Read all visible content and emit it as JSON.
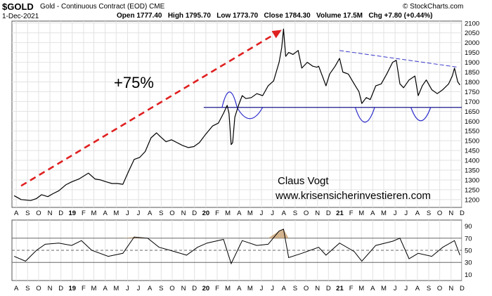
{
  "header": {
    "symbol": "$GOLD",
    "description": "Gold - Continuous Contract (EOD)",
    "exchange": "CME",
    "date": "1-Dec-2021",
    "ohlc_line": "Open 1777.40   High 1795.70   Low 1773.70   Close 1784.30   Volume 17.5M   Chg +7.80 (+0.44%)",
    "watermark": "© StockCharts.com"
  },
  "annotations": {
    "gain_label": "+75%",
    "author": "Claus Vogt",
    "website": "www.krisensicherinvestieren.com"
  },
  "colors": {
    "price_line": "#000000",
    "arrow": "#e02020",
    "support_line": "#1a1a8c",
    "resistance_line": "#3a3acc",
    "ihs_curves": "#2a2acc",
    "grid": "#e2e2e2",
    "rsi_fill": "#c8a070"
  },
  "chart_data": [
    {
      "type": "line",
      "title": "Gold - Continuous Contract (EOD)",
      "x_axis_labels": [
        "A",
        "S",
        "O",
        "N",
        "D",
        "19",
        "F",
        "M",
        "A",
        "M",
        "J",
        "J",
        "A",
        "S",
        "O",
        "N",
        "D",
        "20",
        "F",
        "M",
        "A",
        "M",
        "J",
        "J",
        "A",
        "S",
        "O",
        "N",
        "D",
        "21",
        "F",
        "M",
        "A",
        "M",
        "J",
        "J",
        "A",
        "S",
        "O",
        "N",
        "D"
      ],
      "year_labels": [
        "19",
        "20",
        "21"
      ],
      "y_ticks": [
        1200,
        1250,
        1300,
        1350,
        1400,
        1450,
        1500,
        1550,
        1600,
        1650,
        1700,
        1750,
        1800,
        1850,
        1900,
        1950,
        2000,
        2050,
        2100
      ],
      "ylim": [
        1160,
        2110
      ],
      "grid": true,
      "x": [
        "2018-08-01",
        "2018-08-20",
        "2018-09-15",
        "2018-10-01",
        "2018-10-15",
        "2018-11-01",
        "2018-11-15",
        "2018-12-01",
        "2018-12-20",
        "2019-01-05",
        "2019-01-25",
        "2019-02-20",
        "2019-03-10",
        "2019-03-25",
        "2019-04-10",
        "2019-04-25",
        "2019-05-10",
        "2019-05-25",
        "2019-06-10",
        "2019-06-25",
        "2019-07-10",
        "2019-07-25",
        "2019-08-10",
        "2019-08-25",
        "2019-09-05",
        "2019-09-20",
        "2019-10-05",
        "2019-10-20",
        "2019-11-05",
        "2019-11-20",
        "2019-12-05",
        "2019-12-20",
        "2020-01-05",
        "2020-01-25",
        "2020-02-10",
        "2020-02-24",
        "2020-03-05",
        "2020-03-10",
        "2020-03-16",
        "2020-03-20",
        "2020-03-26",
        "2020-04-05",
        "2020-04-15",
        "2020-04-25",
        "2020-05-10",
        "2020-05-25",
        "2020-06-10",
        "2020-06-25",
        "2020-07-10",
        "2020-07-25",
        "2020-08-01",
        "2020-08-06",
        "2020-08-12",
        "2020-08-20",
        "2020-09-01",
        "2020-09-15",
        "2020-09-25",
        "2020-10-10",
        "2020-10-25",
        "2020-11-05",
        "2020-11-10",
        "2020-11-20",
        "2020-11-30",
        "2020-12-10",
        "2020-12-25",
        "2021-01-06",
        "2021-01-15",
        "2021-01-30",
        "2021-02-15",
        "2021-02-28",
        "2021-03-08",
        "2021-03-20",
        "2021-03-31",
        "2021-04-15",
        "2021-04-30",
        "2021-05-15",
        "2021-05-31",
        "2021-06-10",
        "2021-06-20",
        "2021-06-30",
        "2021-07-15",
        "2021-07-31",
        "2021-08-09",
        "2021-08-20",
        "2021-08-31",
        "2021-09-15",
        "2021-09-30",
        "2021-10-15",
        "2021-10-31",
        "2021-11-10",
        "2021-11-16",
        "2021-11-25",
        "2021-12-01"
      ],
      "values": [
        1220,
        1200,
        1195,
        1205,
        1225,
        1215,
        1230,
        1245,
        1275,
        1290,
        1305,
        1335,
        1305,
        1300,
        1290,
        1282,
        1282,
        1278,
        1345,
        1405,
        1415,
        1445,
        1515,
        1540,
        1520,
        1495,
        1505,
        1490,
        1475,
        1465,
        1470,
        1490,
        1530,
        1575,
        1590,
        1640,
        1680,
        1640,
        1480,
        1490,
        1620,
        1680,
        1730,
        1715,
        1720,
        1740,
        1730,
        1780,
        1805,
        1900,
        1975,
        2070,
        1930,
        1950,
        1940,
        1960,
        1870,
        1900,
        1880,
        1875,
        1880,
        1830,
        1780,
        1840,
        1880,
        1920,
        1850,
        1840,
        1790,
        1750,
        1690,
        1720,
        1710,
        1780,
        1790,
        1840,
        1900,
        1910,
        1790,
        1770,
        1810,
        1830,
        1730,
        1780,
        1810,
        1760,
        1740,
        1760,
        1790,
        1830,
        1870,
        1800,
        1784
      ],
      "horizontal_line": 1670,
      "resistance_line": {
        "from": [
          "2021-01-06",
          1960
        ],
        "to": [
          "2021-11-25",
          1875
        ]
      },
      "gain_arrow": {
        "from": [
          "2018-08-20",
          1270
        ],
        "to": [
          "2020-08-01",
          2065
        ]
      }
    },
    {
      "type": "line",
      "title": "",
      "y_ticks": [
        10,
        30,
        50,
        70,
        90
      ],
      "ylim": [
        0,
        100
      ],
      "reference_lines": [
        30,
        50,
        70
      ],
      "x": [
        "2018-08-01",
        "2018-09-01",
        "2018-10-01",
        "2018-10-25",
        "2018-12-01",
        "2019-01-05",
        "2019-02-01",
        "2019-03-01",
        "2019-04-15",
        "2019-05-25",
        "2019-06-25",
        "2019-08-01",
        "2019-09-01",
        "2019-10-01",
        "2019-11-15",
        "2019-12-15",
        "2020-01-10",
        "2020-02-24",
        "2020-03-16",
        "2020-04-15",
        "2020-05-25",
        "2020-06-25",
        "2020-07-25",
        "2020-08-06",
        "2020-08-20",
        "2020-09-25",
        "2020-11-10",
        "2020-11-30",
        "2021-01-06",
        "2021-02-15",
        "2021-03-08",
        "2021-04-15",
        "2021-05-31",
        "2021-06-20",
        "2021-07-15",
        "2021-08-09",
        "2021-09-15",
        "2021-10-15",
        "2021-11-16",
        "2021-12-01"
      ],
      "values": [
        40,
        32,
        50,
        60,
        62,
        58,
        66,
        50,
        40,
        45,
        72,
        70,
        55,
        50,
        42,
        55,
        62,
        68,
        28,
        66,
        58,
        60,
        82,
        85,
        38,
        45,
        55,
        42,
        62,
        48,
        32,
        58,
        65,
        70,
        36,
        45,
        40,
        55,
        66,
        42
      ]
    }
  ]
}
